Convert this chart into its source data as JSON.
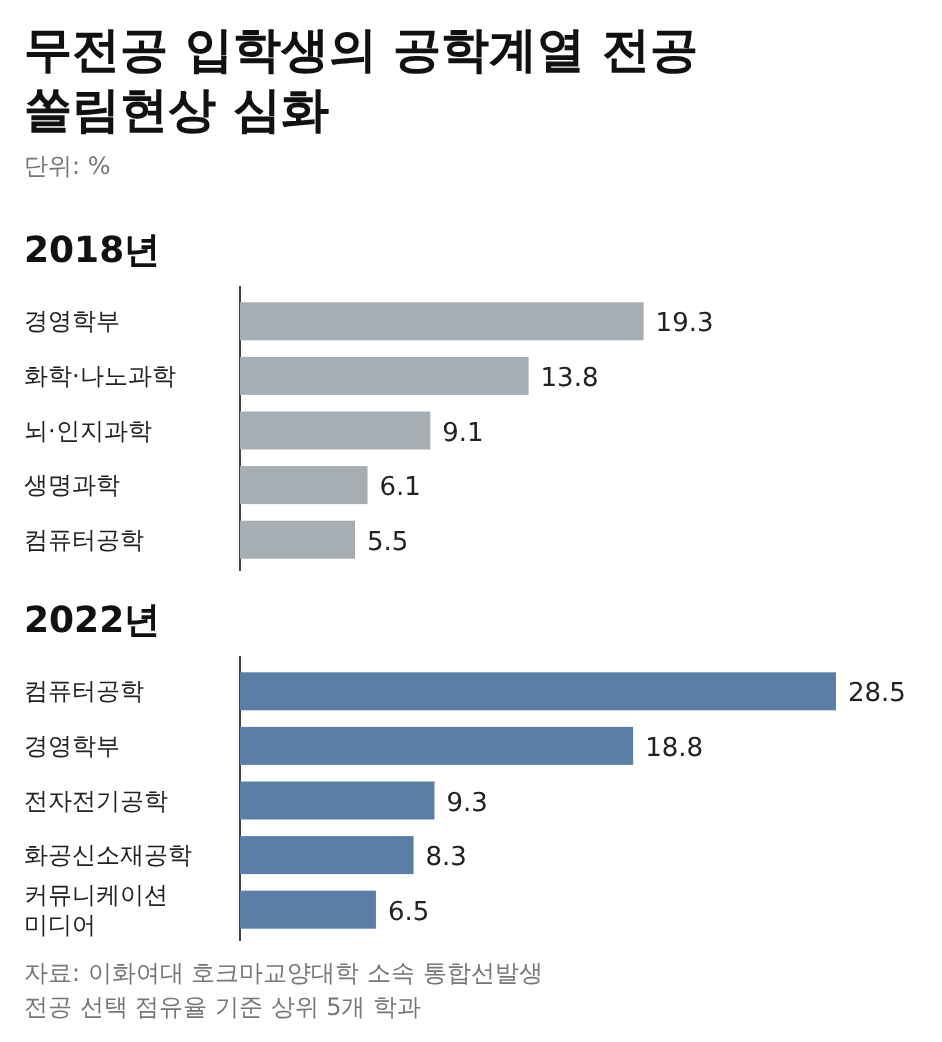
{
  "chart_data": [
    {
      "type": "other",
      "title": "무전공 입학생의 공학계열 전공 쏠림현상 심화",
      "subtitle": "단위: %"
    },
    {
      "type": "bar",
      "orientation": "horizontal",
      "title": "2018년",
      "categories": [
        "경영학부",
        "화학·나노과학",
        "뇌·인지과학",
        "생명과학",
        "컴퓨터공학"
      ],
      "values": [
        19.3,
        13.8,
        9.1,
        6.1,
        5.5
      ],
      "color": "#a7aeb3",
      "data_labels": true
    },
    {
      "type": "bar",
      "orientation": "horizontal",
      "title": "2022년",
      "categories": [
        "컴퓨터공학",
        "경영학부",
        "전자전기공학",
        "화공신소재공학",
        "커뮤니케이션\n미디어"
      ],
      "values": [
        28.5,
        18.8,
        9.3,
        8.3,
        6.5
      ],
      "color": "#5b7ea6",
      "data_labels": true,
      "annotations": [
        "자료: 이화여대 호크마교양대학 소속 통합선발생\n전공 선택 점유율 기준 상위 5개 학과"
      ]
    }
  ]
}
